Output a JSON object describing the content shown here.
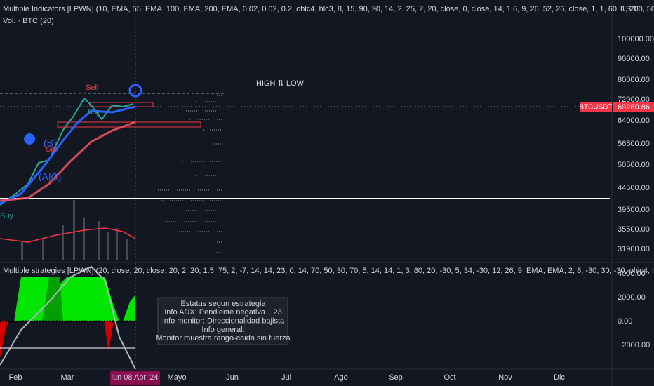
{
  "header": {
    "indicator": "Multiple Indicators [LPWN] (10, EMA, 55, EMA, 100, EMA, 200, EMA, 0.02, 0.02, 0.2, ohlc4, hlc3, 8, 15, 90, 90, 14, 2, 25, 2, 20, close, 0, close, 14, 1.6, 9, 26, 52, 26, close, 1, 1, 60, 1, 200, 50, 1,",
    "volume": "Vol. · BTC (20)",
    "currency": "USDT"
  },
  "price_axis": [
    "100000.00",
    "90000.00",
    "80000.00",
    "72000.00",
    "64000.00",
    "56500.00",
    "50500.00",
    "44500.00",
    "39500.00",
    "35500.00",
    "31900.00"
  ],
  "price_tag": {
    "symbol": "BTCUSDT",
    "price": "69280.86"
  },
  "annotations": {
    "high_low": "HIGH ⇅ LOW",
    "sell_1": "Sell",
    "sell_2": "Sell",
    "buy_1": "Buy",
    "buy_2": "Buy",
    "wave_b": "(B)",
    "wave_ac": "(A|C)"
  },
  "lower_pane": {
    "title": "Multiple strategies [LPWN] (20, close, 20, close, 20, 2, 20, 1.5, 75, 2, -7, 14, 14, 23, 0, 14, 70, 50, 30, 70, 5, 14, 14, 1, 3, 80, 20, -30, 5, 34, -30, 12, 26, 9, EMA, EMA, 2, 8, -30, 30, -30, ohlc4, hlc3",
    "axis": [
      "4000.00",
      "2000.00",
      "0.00",
      "−2000.00"
    ],
    "info_box": [
      "Estatus segun estrategia",
      "Info ADX: Pendiente negativa ↓ 23",
      "Info monitor: Direccionalidad bajista",
      "Info general:",
      "Monitor muestra rango-caida sin fuerza"
    ]
  },
  "time_axis": {
    "labels": [
      "Feb",
      "Mar",
      "Mayo",
      "Jun",
      "Jul",
      "Ago",
      "Sep",
      "Oct",
      "Nov",
      "Dic"
    ],
    "cursor": "lun 08 Abr '24"
  }
}
